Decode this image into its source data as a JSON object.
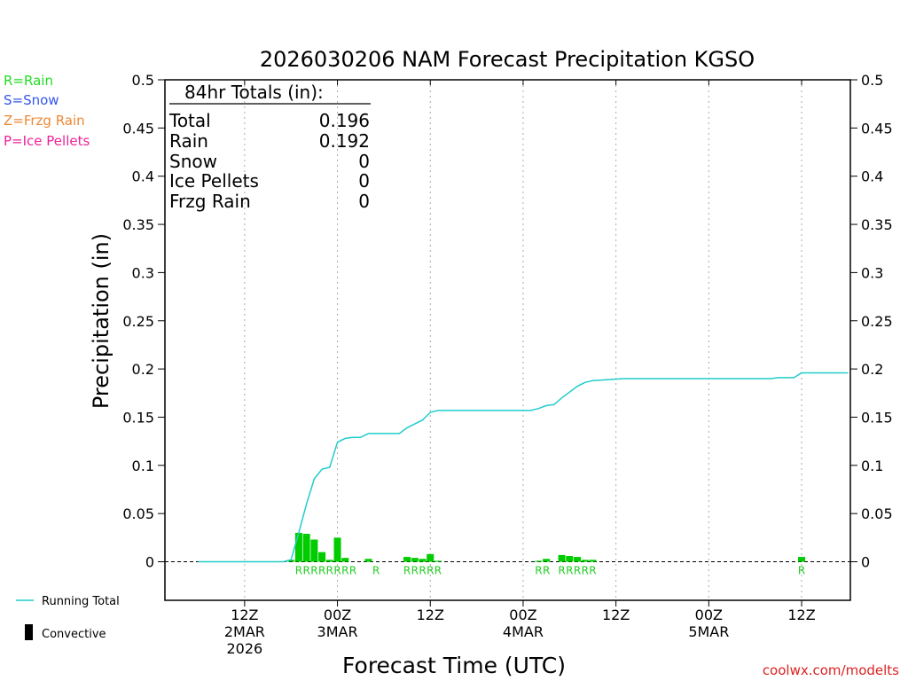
{
  "chart_data": {
    "type": "bar",
    "title": "2026030206 NAM Forecast Precipitation KGSO",
    "ylabel": "Precipitation (in)",
    "xlabel": "Forecast Time (UTC)",
    "ylim": [
      -0.04,
      0.5
    ],
    "xlim_hours": [
      -4.3,
      84.3
    ],
    "y_ticks": [
      0,
      0.05,
      0.1,
      0.15,
      0.2,
      0.25,
      0.3,
      0.35,
      0.4,
      0.45,
      0.5
    ],
    "y_tick_labels": [
      "0",
      "0.05",
      "0.1",
      "0.15",
      "0.2",
      "0.25",
      "0.3",
      "0.35",
      "0.4",
      "0.45",
      "0.5"
    ],
    "x_ticks": [
      {
        "hour": 6,
        "lines": [
          "12Z",
          "2MAR",
          "2026"
        ]
      },
      {
        "hour": 18,
        "lines": [
          "00Z",
          "3MAR"
        ]
      },
      {
        "hour": 30,
        "lines": [
          "12Z"
        ]
      },
      {
        "hour": 42,
        "lines": [
          "00Z",
          "4MAR"
        ]
      },
      {
        "hour": 54,
        "lines": [
          "12Z"
        ]
      },
      {
        "hour": 66,
        "lines": [
          "00Z",
          "5MAR"
        ]
      },
      {
        "hour": 78,
        "lines": [
          "12Z"
        ]
      }
    ],
    "legend_top": [
      {
        "label": "R=Rain",
        "color": "#22dd22"
      },
      {
        "label": "S=Snow",
        "color": "#3355ee"
      },
      {
        "label": "Z=Frzg Rain",
        "color": "#ee8833"
      },
      {
        "label": "P=Ice Pellets",
        "color": "#ee2299"
      }
    ],
    "legend_bottom": {
      "running_total": "Running Total",
      "convective": "Convective"
    },
    "totals": {
      "header": "84hr Totals (in):",
      "rows": [
        {
          "label": "Total",
          "value": "0.196"
        },
        {
          "label": "Rain",
          "value": "0.192"
        },
        {
          "label": "Snow",
          "value": "0"
        },
        {
          "label": "Ice Pellets",
          "value": "0"
        },
        {
          "label": "Frzg Rain",
          "value": "0"
        }
      ]
    },
    "bars": {
      "name": "Hourly Precipitation",
      "color": "#00cc00",
      "values": [
        {
          "hour": 12,
          "value": 0.002
        },
        {
          "hour": 13,
          "value": 0.03
        },
        {
          "hour": 14,
          "value": 0.029
        },
        {
          "hour": 15,
          "value": 0.023
        },
        {
          "hour": 16,
          "value": 0.01
        },
        {
          "hour": 17,
          "value": 0.002
        },
        {
          "hour": 18,
          "value": 0.025
        },
        {
          "hour": 19,
          "value": 0.004
        },
        {
          "hour": 22,
          "value": 0.003
        },
        {
          "hour": 27,
          "value": 0.005
        },
        {
          "hour": 28,
          "value": 0.004
        },
        {
          "hour": 29,
          "value": 0.003
        },
        {
          "hour": 30,
          "value": 0.008
        },
        {
          "hour": 31,
          "value": 0.001
        },
        {
          "hour": 44,
          "value": 0.001
        },
        {
          "hour": 45,
          "value": 0.003
        },
        {
          "hour": 47,
          "value": 0.007
        },
        {
          "hour": 48,
          "value": 0.006
        },
        {
          "hour": 49,
          "value": 0.005
        },
        {
          "hour": 50,
          "value": 0.002
        },
        {
          "hour": 51,
          "value": 0.002
        },
        {
          "hour": 78,
          "value": 0.005
        }
      ]
    },
    "ptype_labels": [
      {
        "hour": 13,
        "text": "R"
      },
      {
        "hour": 14,
        "text": "R"
      },
      {
        "hour": 15,
        "text": "R"
      },
      {
        "hour": 16,
        "text": "R"
      },
      {
        "hour": 17,
        "text": "R"
      },
      {
        "hour": 18,
        "text": "R"
      },
      {
        "hour": 19,
        "text": "R"
      },
      {
        "hour": 20,
        "text": "R"
      },
      {
        "hour": 23,
        "text": "R"
      },
      {
        "hour": 27,
        "text": "R"
      },
      {
        "hour": 28,
        "text": "R"
      },
      {
        "hour": 29,
        "text": "R"
      },
      {
        "hour": 30,
        "text": "R"
      },
      {
        "hour": 31,
        "text": "R"
      },
      {
        "hour": 44,
        "text": "R"
      },
      {
        "hour": 45,
        "text": "R"
      },
      {
        "hour": 47,
        "text": "R"
      },
      {
        "hour": 48,
        "text": "R"
      },
      {
        "hour": 49,
        "text": "R"
      },
      {
        "hour": 50,
        "text": "R"
      },
      {
        "hour": 51,
        "text": "R"
      },
      {
        "hour": 78,
        "text": "R"
      }
    ],
    "running_total": {
      "name": "Running Total",
      "color": "#22cccc",
      "points": [
        [
          0,
          0
        ],
        [
          11,
          0
        ],
        [
          12,
          0.002
        ],
        [
          13,
          0.03
        ],
        [
          14,
          0.06
        ],
        [
          15,
          0.086
        ],
        [
          16,
          0.096
        ],
        [
          17,
          0.098
        ],
        [
          18,
          0.124
        ],
        [
          19,
          0.128
        ],
        [
          20,
          0.129
        ],
        [
          21,
          0.129
        ],
        [
          22,
          0.133
        ],
        [
          23,
          0.133
        ],
        [
          26,
          0.133
        ],
        [
          27,
          0.139
        ],
        [
          28,
          0.143
        ],
        [
          29,
          0.147
        ],
        [
          30,
          0.155
        ],
        [
          31,
          0.157
        ],
        [
          43,
          0.157
        ],
        [
          44,
          0.159
        ],
        [
          45,
          0.162
        ],
        [
          46,
          0.163
        ],
        [
          47,
          0.17
        ],
        [
          48,
          0.176
        ],
        [
          49,
          0.182
        ],
        [
          50,
          0.186
        ],
        [
          51,
          0.188
        ],
        [
          53,
          0.189
        ],
        [
          55,
          0.19
        ],
        [
          74,
          0.19
        ],
        [
          75,
          0.191
        ],
        [
          77,
          0.191
        ],
        [
          78,
          0.196
        ],
        [
          84,
          0.196
        ]
      ]
    }
  },
  "footer": {
    "credit": "coolwx.com/modelts"
  }
}
